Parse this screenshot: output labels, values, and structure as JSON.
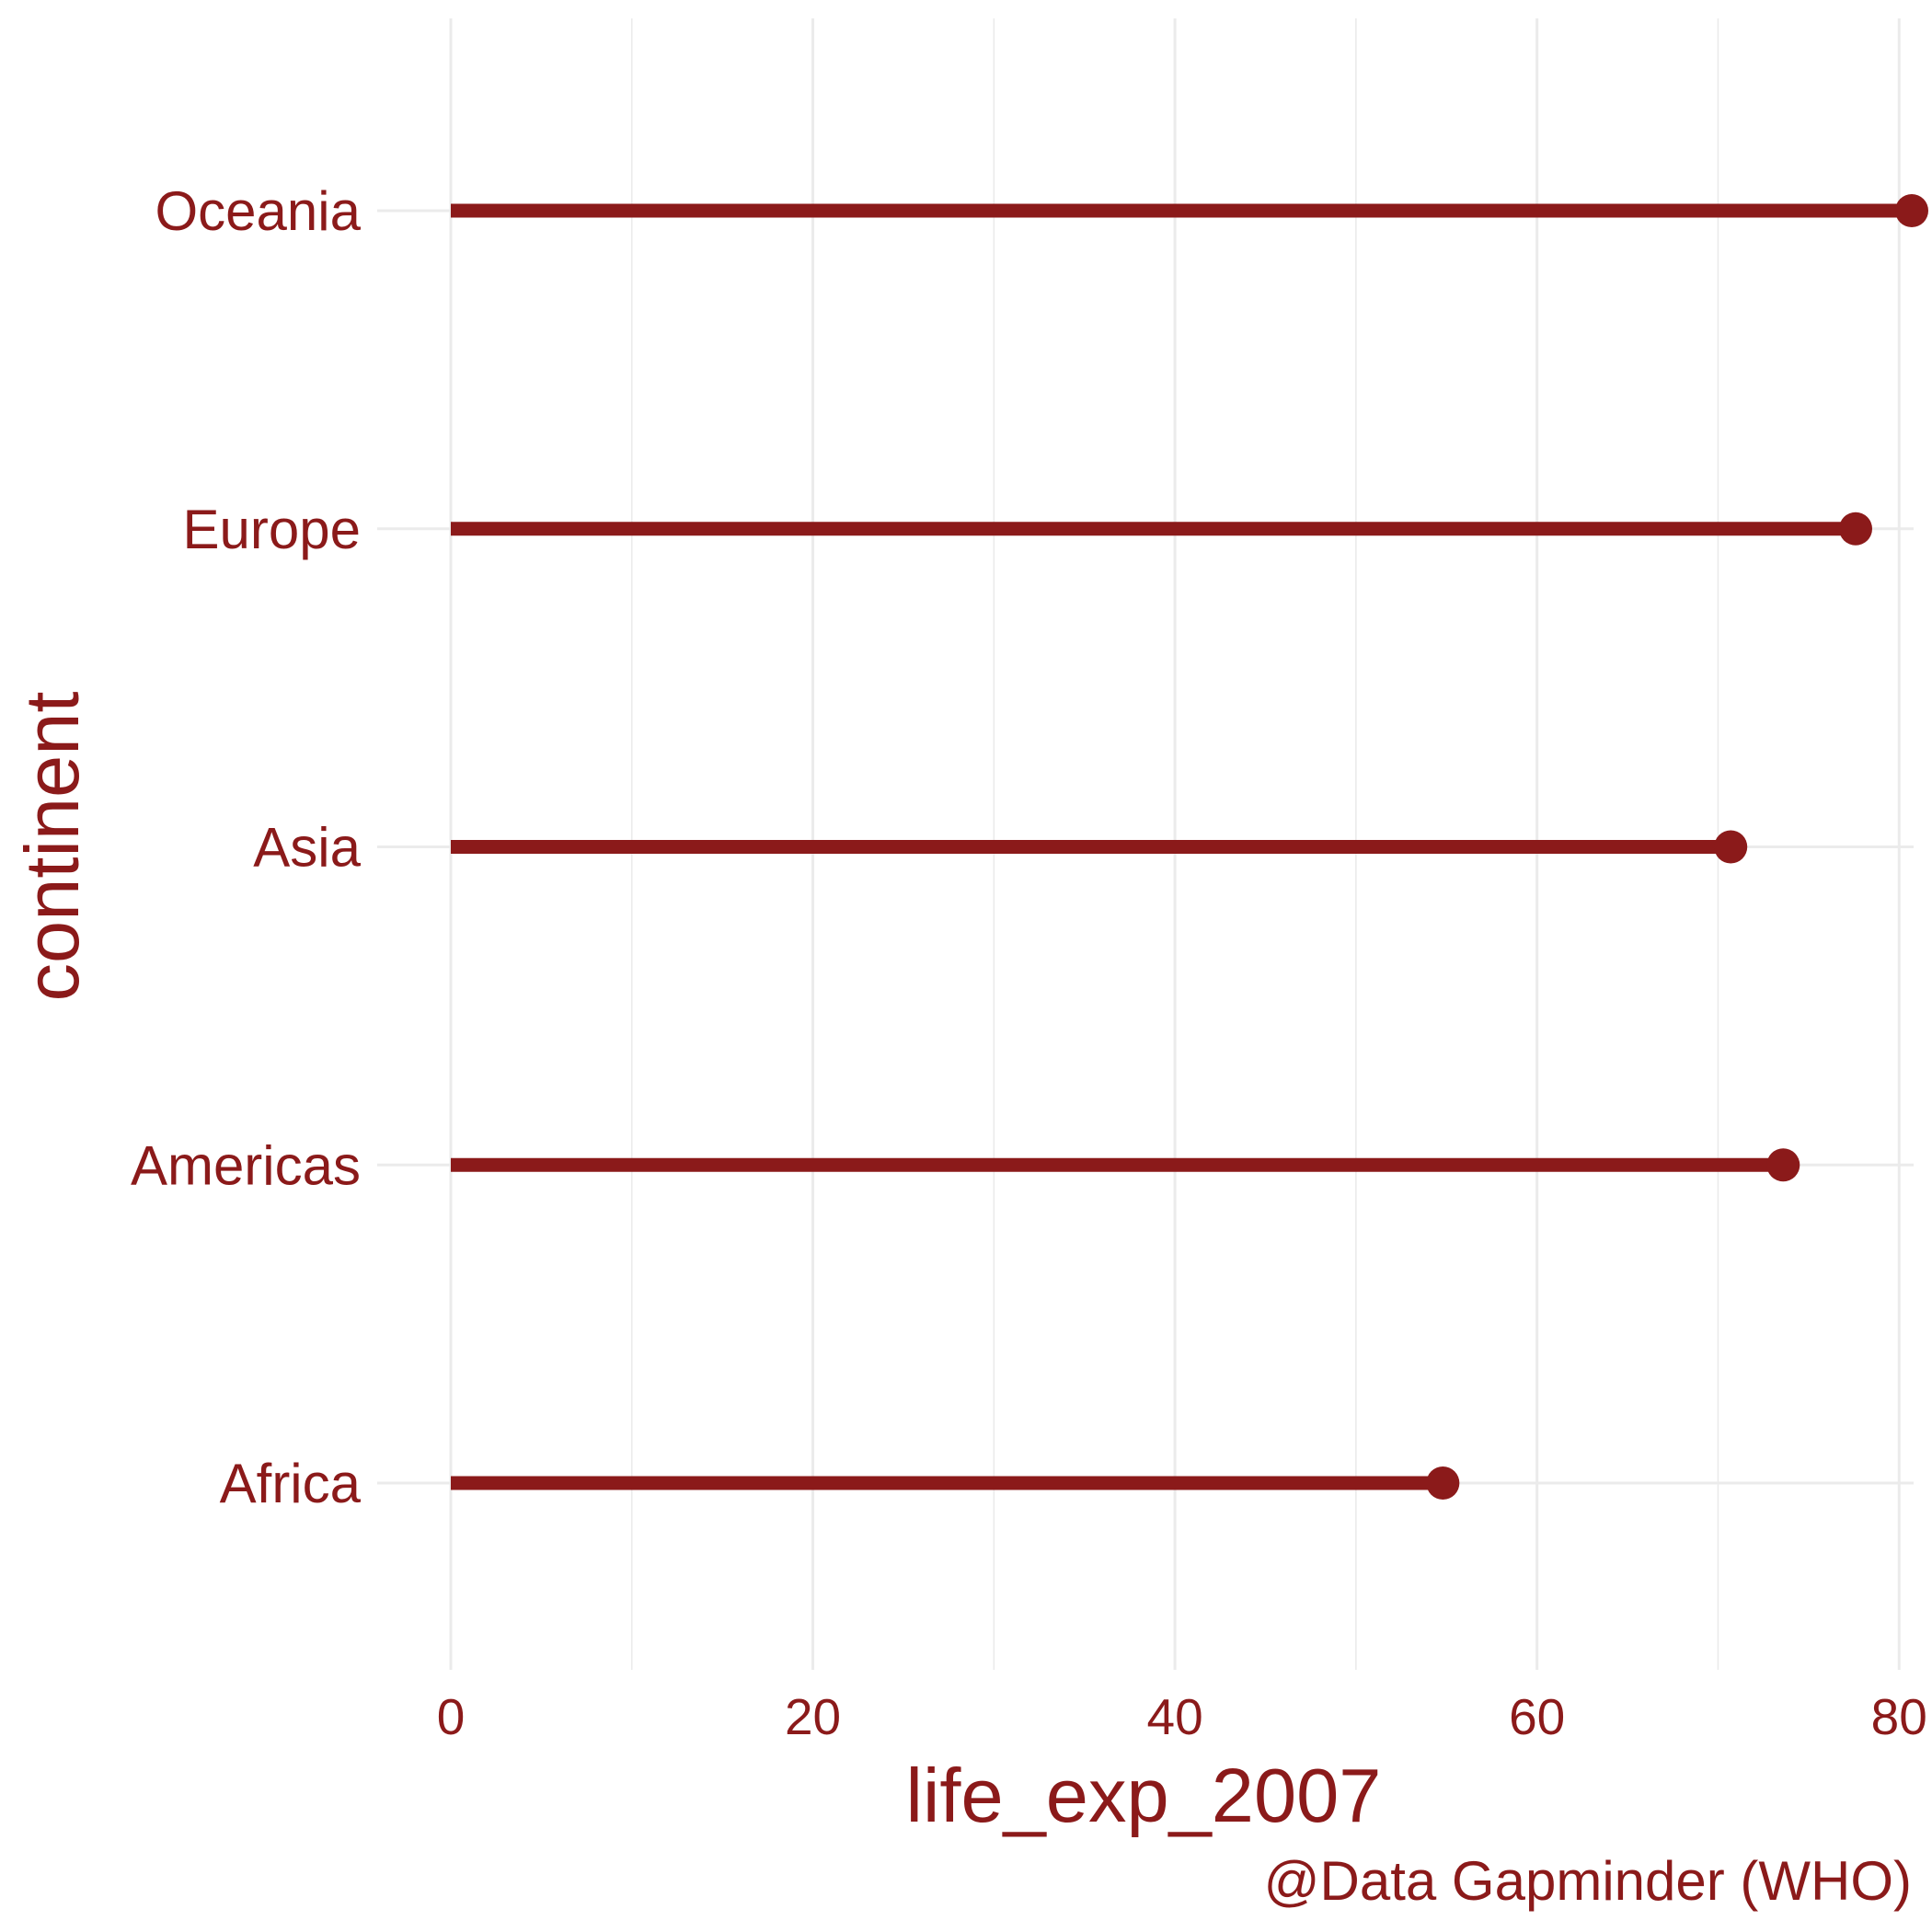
{
  "colors": {
    "primary": "#8b1a1a",
    "grid": "#ebebeb",
    "background": "#ffffff"
  },
  "chart_data": {
    "type": "lollipop",
    "orientation": "horizontal",
    "categories": [
      "Africa",
      "Americas",
      "Asia",
      "Europe",
      "Oceania"
    ],
    "values": [
      54.8,
      73.6,
      70.7,
      77.6,
      80.7
    ],
    "xlabel": "life_exp_2007",
    "ylabel": "continent",
    "xlim": [
      0,
      80.7
    ],
    "xticks": [
      0,
      20,
      40,
      60,
      80
    ],
    "xtick_labels": [
      "0",
      "20",
      "40",
      "60",
      "80"
    ],
    "caption": "@Data Gapminder (WHO)",
    "grid": true
  }
}
